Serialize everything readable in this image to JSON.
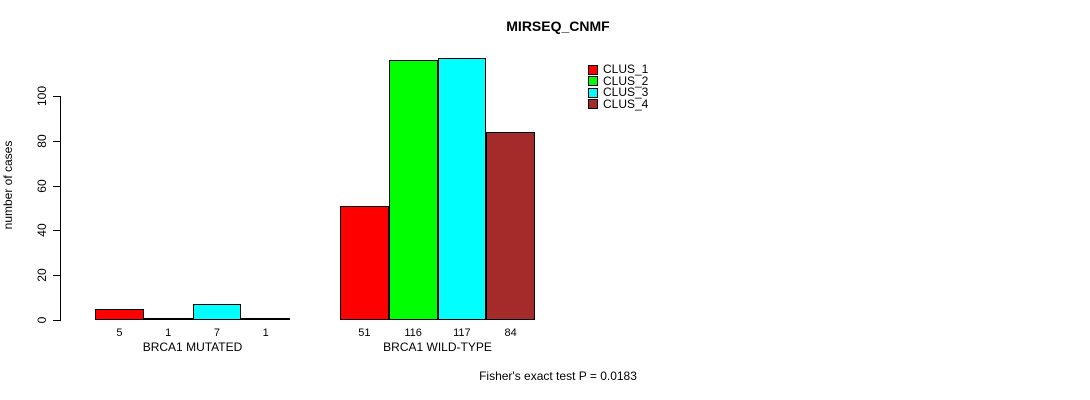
{
  "chart_data": {
    "type": "bar",
    "title": "MIRSEQ_CNMF",
    "ylabel": "number of cases",
    "xlabel": "",
    "yticks": [
      0,
      20,
      40,
      60,
      80,
      100
    ],
    "ylim": [
      0,
      117
    ],
    "grid": false,
    "legend_position": "top-right",
    "categories": [
      "BRCA1 MUTATED",
      "BRCA1 WILD-TYPE"
    ],
    "series": [
      {
        "name": "CLUS_1",
        "color": "#FF0000",
        "values": [
          5,
          51
        ]
      },
      {
        "name": "CLUS_2",
        "color": "#00FF00",
        "values": [
          1,
          116
        ]
      },
      {
        "name": "CLUS_3",
        "color": "#00FFFF",
        "values": [
          7,
          117
        ]
      },
      {
        "name": "CLUS_4",
        "color": "#A52A2A",
        "values": [
          1,
          84
        ]
      }
    ],
    "bar_value_labels": [
      [
        "5",
        "1",
        "7",
        "1"
      ],
      [
        "51",
        "116",
        "117",
        "84"
      ]
    ],
    "annotation": "Fisher's exact test P = 0.0183"
  }
}
